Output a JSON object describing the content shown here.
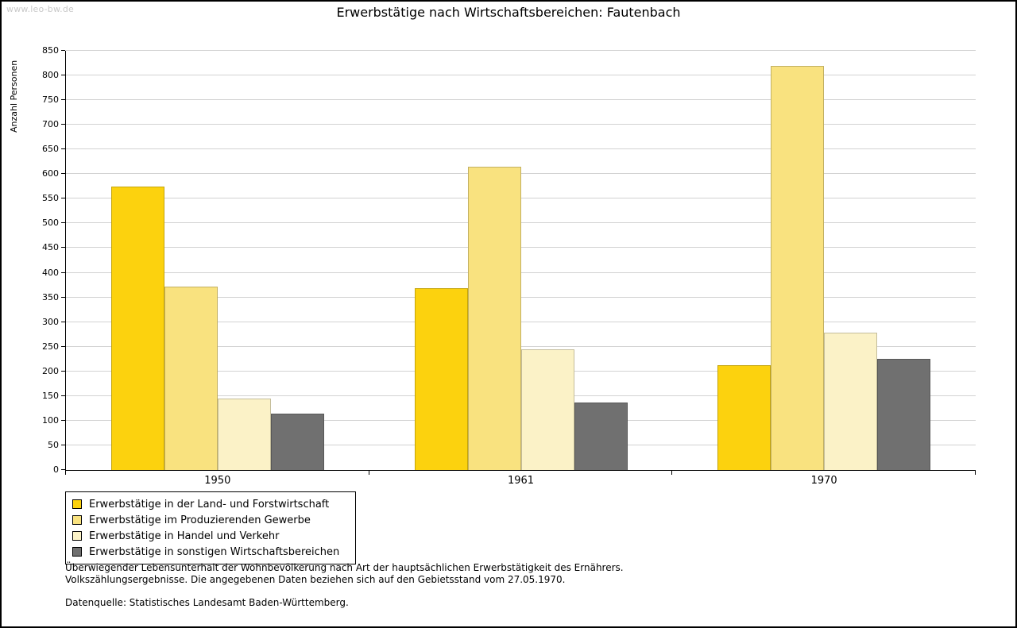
{
  "watermark": "www.leo-bw.de",
  "chart_data": {
    "type": "bar",
    "title": "Erwerbstätige nach Wirtschaftsbereichen: Fautenbach",
    "ylabel": "Anzahl Personen",
    "xlabel": "",
    "categories": [
      "1950",
      "1961",
      "1970"
    ],
    "series": [
      {
        "name": "Erwerbstätige in der Land- und Forstwirtschaft",
        "color": "#FCD20E",
        "values": [
          575,
          369,
          213
        ]
      },
      {
        "name": "Erwerbstätige im Produzierenden Gewerbe",
        "color": "#F9E27F",
        "values": [
          372,
          615,
          820
        ]
      },
      {
        "name": "Erwerbstätige in Handel und Verkehr",
        "color": "#FBF2C7",
        "values": [
          145,
          245,
          278
        ]
      },
      {
        "name": "Erwerbstätige in sonstigen Wirtschaftsbereichen",
        "color": "#707070",
        "values": [
          115,
          137,
          226
        ]
      }
    ],
    "ylim": [
      0,
      850
    ],
    "ytick_step": 50,
    "grid": true,
    "legend_position": "bottom-left"
  },
  "footnotes": {
    "line1": "Überwiegender Lebensunterhalt der Wohnbevölkerung nach Art der hauptsächlichen Erwerbstätigkeit des Ernährers.",
    "line2": "Volkszählungsergebnisse. Die angegebenen Daten beziehen sich auf den Gebietsstand vom 27.05.1970.",
    "source": "Datenquelle: Statistisches Landesamt Baden-Württemberg."
  }
}
